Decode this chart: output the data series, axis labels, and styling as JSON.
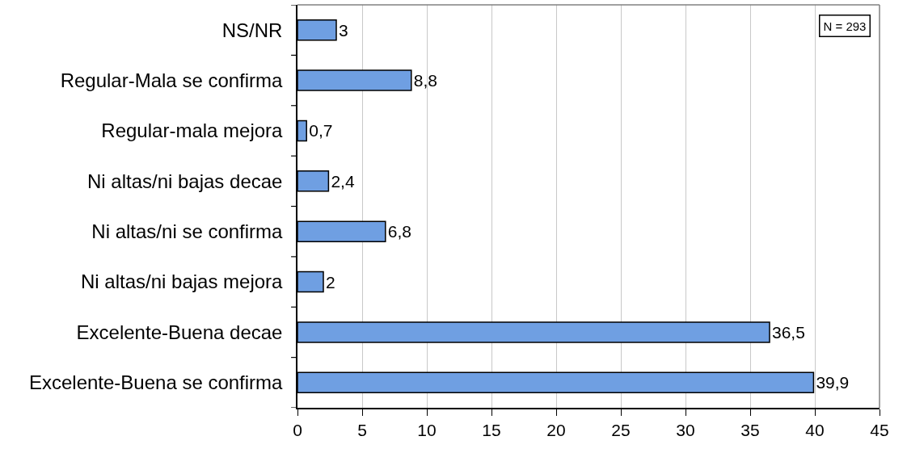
{
  "chart_data": {
    "type": "bar",
    "orientation": "horizontal",
    "categories": [
      "NS/NR",
      "Regular-Mala se confirma",
      "Regular-mala mejora",
      "Ni altas/ni bajas decae",
      "Ni altas/ni se confirma",
      "Ni altas/ni bajas mejora",
      "Excelente-Buena decae",
      "Excelente-Buena se confirma"
    ],
    "values": [
      3,
      8.8,
      0.7,
      2.4,
      6.8,
      2,
      36.5,
      39.9
    ],
    "value_labels": [
      "3",
      "8,8",
      "0,7",
      "2,4",
      "6,8",
      "2",
      "36,5",
      "39,9"
    ],
    "color": "#6f9fe2",
    "xlim": [
      0,
      45
    ],
    "xticks": [
      0,
      5,
      10,
      15,
      20,
      25,
      30,
      35,
      40,
      45
    ],
    "grid": "x",
    "annotations": [
      "N = 293"
    ]
  }
}
